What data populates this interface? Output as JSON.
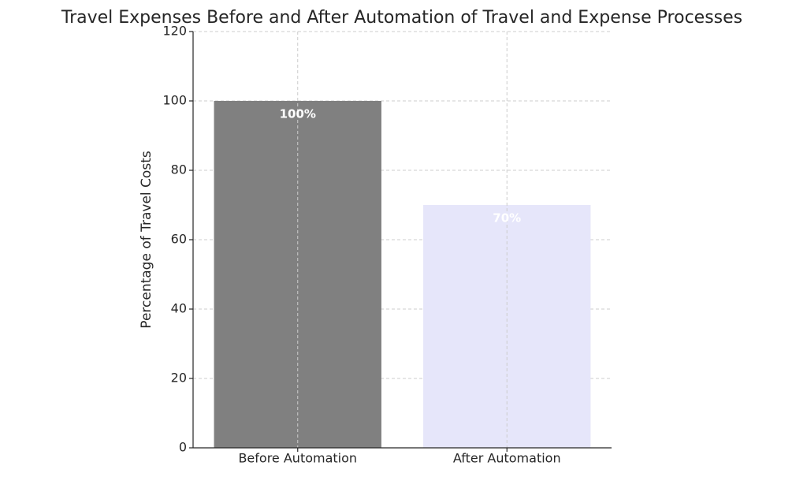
{
  "chart_data": {
    "type": "bar",
    "title": "Travel Expenses Before and After Automation of Travel and Expense Processes",
    "y_label": "Percentage of Travel Costs",
    "categories": [
      "Before Automation",
      "After Automation"
    ],
    "values": [
      100,
      70
    ],
    "value_labels": [
      "100%",
      "70%"
    ],
    "colors": [
      "#808080",
      "#e6e6fa"
    ],
    "ylim": [
      0,
      120
    ],
    "yticks": [
      0,
      20,
      40,
      60,
      80,
      100,
      120
    ],
    "grid": true
  }
}
